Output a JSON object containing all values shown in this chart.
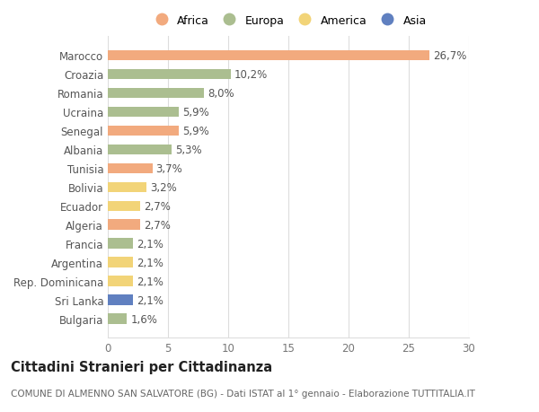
{
  "countries": [
    "Marocco",
    "Croazia",
    "Romania",
    "Ucraina",
    "Senegal",
    "Albania",
    "Tunisia",
    "Bolivia",
    "Ecuador",
    "Algeria",
    "Francia",
    "Argentina",
    "Rep. Dominicana",
    "Sri Lanka",
    "Bulgaria"
  ],
  "values": [
    26.7,
    10.2,
    8.0,
    5.9,
    5.9,
    5.3,
    3.7,
    3.2,
    2.7,
    2.7,
    2.1,
    2.1,
    2.1,
    2.1,
    1.6
  ],
  "labels": [
    "26,7%",
    "10,2%",
    "8,0%",
    "5,9%",
    "5,9%",
    "5,3%",
    "3,7%",
    "3,2%",
    "2,7%",
    "2,7%",
    "2,1%",
    "2,1%",
    "2,1%",
    "2,1%",
    "1,6%"
  ],
  "continents": [
    "Africa",
    "Europa",
    "Europa",
    "Europa",
    "Africa",
    "Europa",
    "Africa",
    "America",
    "America",
    "Africa",
    "Europa",
    "America",
    "America",
    "Asia",
    "Europa"
  ],
  "colors": {
    "Africa": "#F2AA7E",
    "Europa": "#ABBE90",
    "America": "#F2D478",
    "Asia": "#6080C0"
  },
  "legend_order": [
    "Africa",
    "Europa",
    "America",
    "Asia"
  ],
  "xlim": [
    0,
    30
  ],
  "xticks": [
    0,
    5,
    10,
    15,
    20,
    25,
    30
  ],
  "title": "Cittadini Stranieri per Cittadinanza",
  "subtitle": "COMUNE DI ALMENNO SAN SALVATORE (BG) - Dati ISTAT al 1° gennaio - Elaborazione TUTTITALIA.IT",
  "bg_color": "#FFFFFF",
  "grid_color": "#DDDDDD",
  "bar_height": 0.55,
  "label_fontsize": 8.5,
  "ytick_fontsize": 8.5,
  "xtick_fontsize": 8.5,
  "title_fontsize": 10.5,
  "subtitle_fontsize": 7.5,
  "legend_fontsize": 9
}
